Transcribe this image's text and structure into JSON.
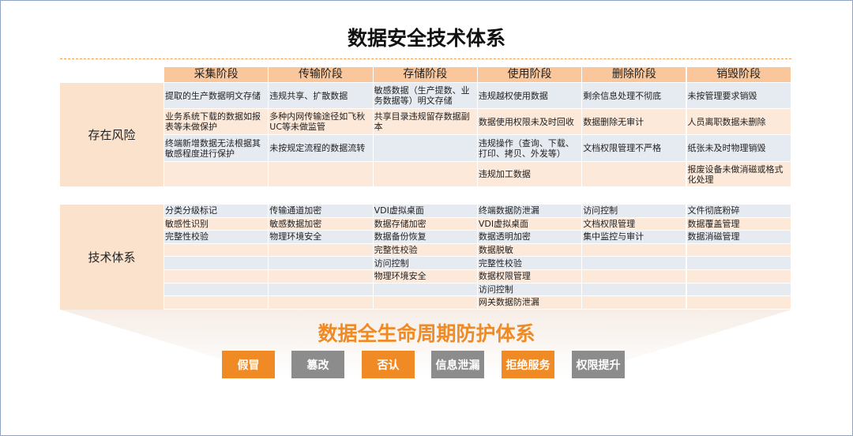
{
  "title": "数据安全技术体系",
  "stages": [
    "采集阶段",
    "传输阶段",
    "存储阶段",
    "使用阶段",
    "删除阶段",
    "销毁阶段"
  ],
  "risks": {
    "label": "存在风险",
    "rows": [
      [
        "提取的生产数据明文存储",
        "违规共享、扩散数据",
        "敏感数据（生产提数、业务数据等）明文存储",
        "违规越权使用数据",
        "剩余信息处理不彻底",
        "未按管理要求销毁"
      ],
      [
        "业务系统下载的数据如报表等未做保护",
        "多种内网传输途径如飞秋UC等未做监管",
        "共享目录违规留存数据副本",
        "数据使用权限未及时回收",
        "数据删除无审计",
        "人员离职数据未删除"
      ],
      [
        "终端新增数据无法根据其敏感程度进行保护",
        "未按规定流程的数据流转",
        null,
        "违规操作（查询、下载、打印、拷贝、外发等）",
        "文档权限管理不严格",
        "纸张未及时物理销毁"
      ],
      [
        null,
        null,
        null,
        "违规加工数据",
        null,
        "报废设备未做消磁或格式化处理"
      ]
    ]
  },
  "techniques": {
    "label": "技术体系",
    "columns": [
      [
        "分类分级标记",
        "敏感性识别",
        "完整性校验"
      ],
      [
        "传输通道加密",
        "敏感数据加密",
        "物理环境安全"
      ],
      [
        "VDI虚拟桌面",
        "数据存储加密",
        "数据备份恢复",
        "完整性校验",
        "访问控制",
        "物理环境安全"
      ],
      [
        "终端数据防泄漏",
        "VDI虚拟桌面",
        "数据透明加密",
        "数据脱敏",
        "完整性校验",
        "数据权限管理",
        "访问控制",
        "网关数据防泄漏"
      ],
      [
        "访问控制",
        "文档权限管理",
        "集中监控与审计"
      ],
      [
        "文件彻底粉碎",
        "数据覆盖管理",
        "数据消磁管理"
      ]
    ]
  },
  "footer": {
    "title": "数据全生命周期防护体系",
    "threats": [
      "假冒",
      "篡改",
      "否认",
      "信息泄漏",
      "拒绝服务",
      "权限提升"
    ]
  }
}
